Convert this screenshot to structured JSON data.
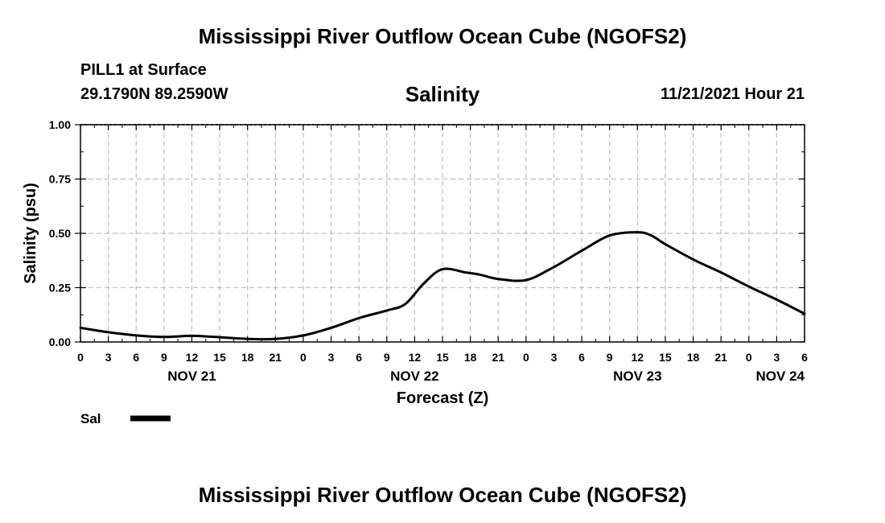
{
  "header": {
    "title": "Mississippi River Outflow Ocean Cube (NGOFS2)",
    "station": "PILL1 at Surface",
    "coords": "29.1790N  89.2590W",
    "datetime": "11/21/2021 Hour 21"
  },
  "footer": {
    "title": "Mississippi River Outflow Ocean Cube (NGOFS2)"
  },
  "chart_data": {
    "type": "line",
    "title": "Salinity",
    "xlabel": "Forecast (Z)",
    "ylabel": "Salinity (psu)",
    "xlim": [
      0,
      78
    ],
    "ylim": [
      0,
      1.0
    ],
    "yticks": [
      0.0,
      0.25,
      0.5,
      0.75,
      1.0
    ],
    "ytick_labels": [
      "0.00",
      "0.25",
      "0.50",
      "0.75",
      "1.00"
    ],
    "xticks": [
      0,
      3,
      6,
      9,
      12,
      15,
      18,
      21,
      24,
      27,
      30,
      33,
      36,
      39,
      42,
      45,
      48,
      51,
      54,
      57,
      60,
      63,
      66,
      69,
      72,
      75,
      78
    ],
    "xtick_labels": [
      "0",
      "3",
      "6",
      "9",
      "12",
      "15",
      "18",
      "21",
      "0",
      "3",
      "6",
      "9",
      "12",
      "15",
      "18",
      "21",
      "0",
      "3",
      "6",
      "9",
      "12",
      "15",
      "18",
      "21",
      "0",
      "3",
      "6"
    ],
    "day_labels": [
      {
        "x": 12,
        "label": "NOV 21"
      },
      {
        "x": 36,
        "label": "NOV 22"
      },
      {
        "x": 60,
        "label": "NOV 23"
      },
      {
        "x": 78,
        "label": "NOV 24"
      }
    ],
    "grid": true,
    "series": [
      {
        "name": "Sal",
        "color": "#000000",
        "x": [
          0,
          3,
          6,
          9,
          12,
          15,
          18,
          21,
          24,
          27,
          30,
          33,
          35,
          37,
          39,
          41.5,
          43,
          45,
          48,
          51,
          54,
          57,
          60,
          61.5,
          63,
          66,
          69,
          72,
          75,
          78
        ],
        "y": [
          0.065,
          0.045,
          0.03,
          0.023,
          0.028,
          0.022,
          0.014,
          0.014,
          0.03,
          0.065,
          0.11,
          0.145,
          0.175,
          0.27,
          0.335,
          0.32,
          0.31,
          0.29,
          0.285,
          0.345,
          0.42,
          0.49,
          0.505,
          0.49,
          0.45,
          0.38,
          0.32,
          0.255,
          0.195,
          0.13
        ]
      }
    ],
    "legend": {
      "position": "bottom-left",
      "label": "Sal"
    }
  }
}
